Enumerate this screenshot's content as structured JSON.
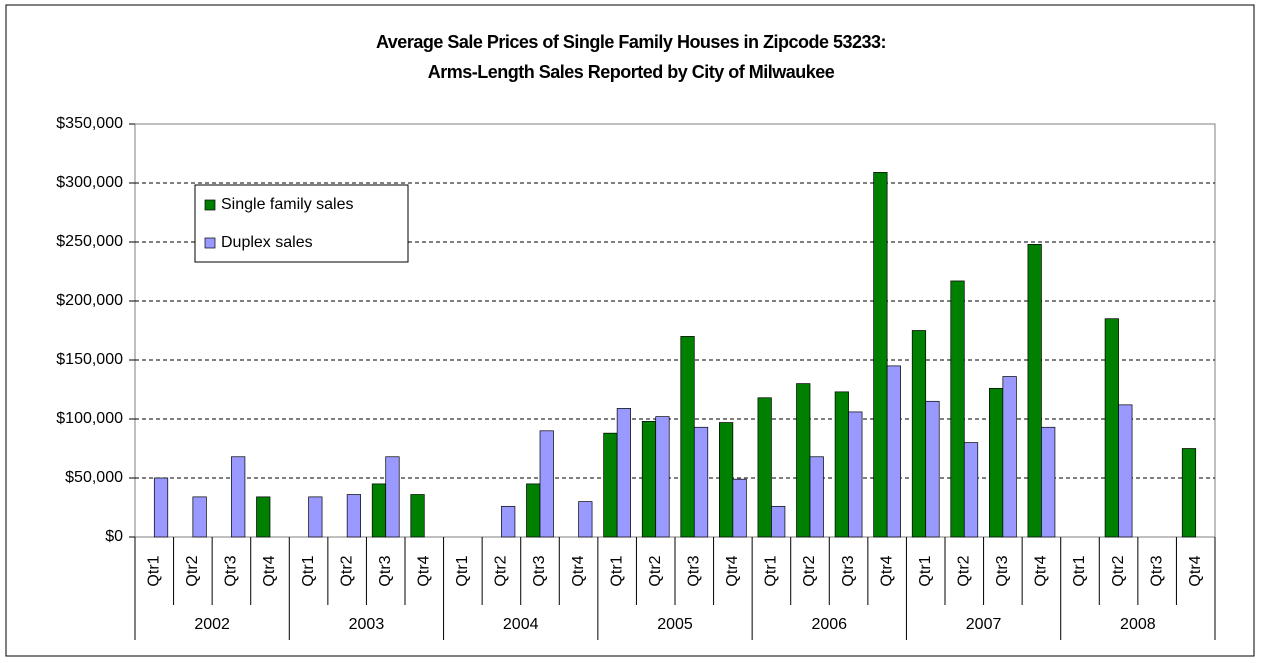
{
  "chart_data": {
    "type": "bar",
    "title": [
      "Average Sale Prices of Single Family Houses in Zipcode 53233:",
      "Arms-Length Sales Reported by City of Milwaukee"
    ],
    "categories": [
      "Qtr1",
      "Qtr2",
      "Qtr3",
      "Qtr4",
      "Qtr1",
      "Qtr2",
      "Qtr3",
      "Qtr4",
      "Qtr1",
      "Qtr2",
      "Qtr3",
      "Qtr4",
      "Qtr1",
      "Qtr2",
      "Qtr3",
      "Qtr4",
      "Qtr1",
      "Qtr2",
      "Qtr3",
      "Qtr4",
      "Qtr1",
      "Qtr2",
      "Qtr3",
      "Qtr4",
      "Qtr1",
      "Qtr2",
      "Qtr3",
      "Qtr4"
    ],
    "groups": [
      "2002",
      "2003",
      "2004",
      "2005",
      "2006",
      "2007",
      "2008"
    ],
    "series": [
      {
        "name": "Single family sales",
        "color": "#008000",
        "values": [
          null,
          null,
          null,
          34000,
          null,
          null,
          45000,
          36000,
          null,
          null,
          45000,
          null,
          88000,
          98000,
          170000,
          97000,
          118000,
          130000,
          123000,
          309000,
          175000,
          217000,
          126000,
          248000,
          null,
          185000,
          null,
          75000
        ]
      },
      {
        "name": "Duplex sales",
        "color": "#9999ff",
        "values": [
          50000,
          34000,
          68000,
          null,
          34000,
          36000,
          68000,
          null,
          null,
          26000,
          90000,
          30000,
          109000,
          102000,
          93000,
          49000,
          26000,
          68000,
          106000,
          145000,
          115000,
          80000,
          136000,
          93000,
          null,
          112000,
          null,
          null
        ]
      }
    ],
    "ylim": [
      0,
      350000
    ],
    "yticks": [
      {
        "value": 0,
        "label": "$0"
      },
      {
        "value": 50000,
        "label": "$50,000"
      },
      {
        "value": 100000,
        "label": "$100,000"
      },
      {
        "value": 150000,
        "label": "$150,000"
      },
      {
        "value": 200000,
        "label": "$200,000"
      },
      {
        "value": 250000,
        "label": "$250,000"
      },
      {
        "value": 300000,
        "label": "$300,000"
      },
      {
        "value": 350000,
        "label": "$350,000"
      }
    ],
    "grid": true,
    "legend": "upper-left"
  }
}
